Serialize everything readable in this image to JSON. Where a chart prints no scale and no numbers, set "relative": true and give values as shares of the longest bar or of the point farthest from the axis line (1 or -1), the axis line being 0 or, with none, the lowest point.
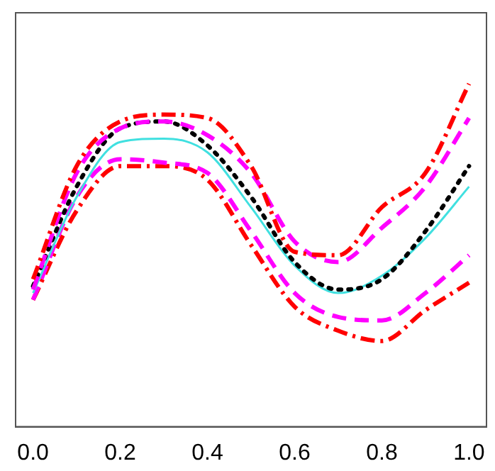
{
  "chart_data": {
    "type": "line",
    "relative": true,
    "tick_labels": "x",
    "grid": false,
    "legend": false,
    "marker": "none",
    "x": [
      0,
      0.1,
      0.2,
      0.3,
      0.4,
      0.5,
      0.6,
      0.7,
      0.8,
      0.9,
      1.0
    ],
    "xlim": [
      -0.04,
      1.04
    ],
    "xticks": [
      {
        "value": 0,
        "label": "0.0"
      },
      {
        "value": 0.2,
        "label": "0.2"
      },
      {
        "value": 0.4,
        "label": "0.4"
      },
      {
        "value": 0.6,
        "label": "0.6"
      },
      {
        "value": 0.8,
        "label": "0.8"
      },
      {
        "value": 1,
        "label": "1.0"
      }
    ],
    "series": [
      {
        "color": "#ff0000",
        "line_style": "dashdot",
        "values": [
          0.43,
          0.76,
          0.89,
          0.91,
          0.9,
          0.76,
          0.51,
          0.5,
          0.64,
          0.74,
          1
        ]
      },
      {
        "color": "#ff00ff",
        "line_style": "dashed",
        "values": [
          0.4,
          0.74,
          0.87,
          0.89,
          0.85,
          0.74,
          0.54,
          0.48,
          0.58,
          0.7,
          0.9
        ]
      },
      {
        "color": "#000000",
        "line_style": "dotted",
        "values": [
          0.41,
          0.7,
          0.87,
          0.89,
          0.82,
          0.67,
          0.48,
          0.4,
          0.43,
          0.57,
          0.76
        ]
      },
      {
        "color": "#40e0e0",
        "line_style": "solid",
        "values": [
          0.39,
          0.67,
          0.83,
          0.84,
          0.8,
          0.64,
          0.47,
          0.39,
          0.44,
          0.55,
          0.7
        ]
      },
      {
        "color": "#ff00ff",
        "line_style": "dashed",
        "values": [
          0.37,
          0.67,
          0.78,
          0.77,
          0.74,
          0.57,
          0.39,
          0.32,
          0.31,
          0.39,
          0.5
        ]
      },
      {
        "color": "#ff0000",
        "line_style": "dashdot",
        "values": [
          0.37,
          0.63,
          0.76,
          0.76,
          0.72,
          0.53,
          0.35,
          0.28,
          0.25,
          0.34,
          0.42
        ]
      }
    ]
  }
}
